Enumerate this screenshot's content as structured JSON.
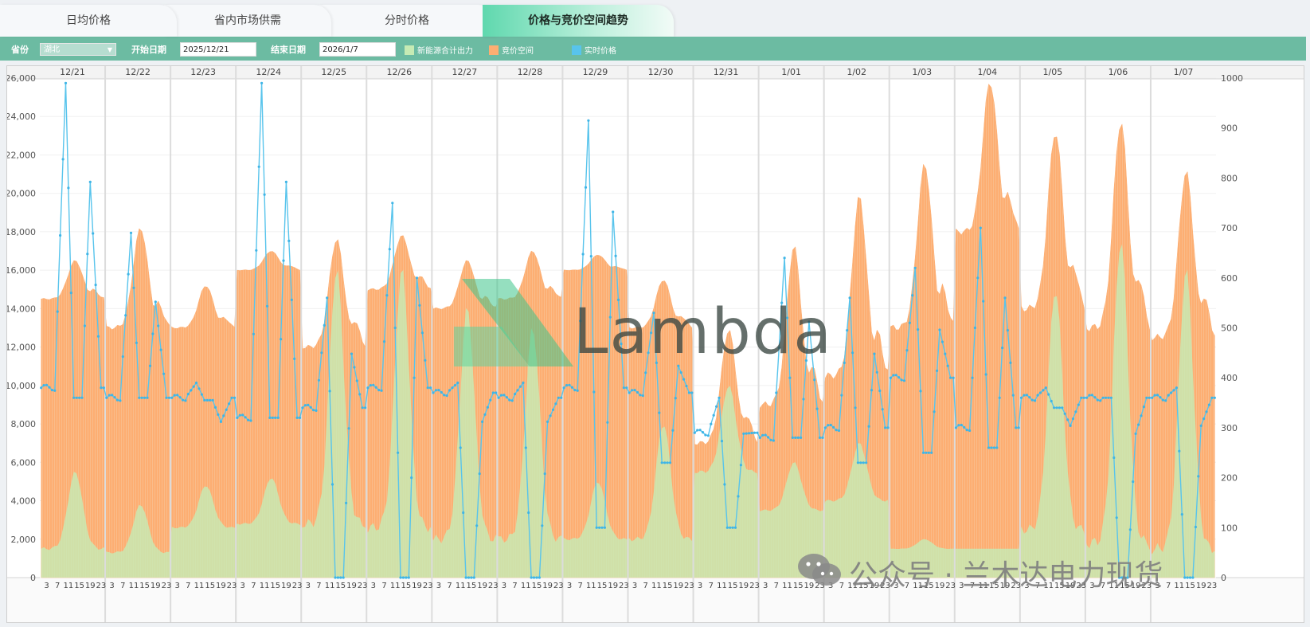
{
  "tabs": [
    {
      "label": "日均价格",
      "active": false
    },
    {
      "label": "省内市场供需",
      "active": false
    },
    {
      "label": "分时价格",
      "active": false
    },
    {
      "label": "价格与竞价空间趋势",
      "active": true
    }
  ],
  "toolbar": {
    "province_label": "省份",
    "province_value": "湖北",
    "start_label": "开始日期",
    "start_value": "2025/12/21",
    "end_label": "结束日期",
    "end_value": "2026/1/7"
  },
  "legend": [
    {
      "name": "新能源合计出力",
      "color": "#c6ebb4"
    },
    {
      "name": "竞价空间",
      "color": "#fdae72"
    },
    {
      "name": "实时价格",
      "color": "#58c4ec"
    }
  ],
  "watermark": {
    "text": "Lambda",
    "wechat": "公众号 · 兰木达电力现货"
  },
  "chart_data": {
    "type": "area",
    "days": [
      "12/21",
      "12/22",
      "12/23",
      "12/24",
      "12/25",
      "12/26",
      "12/27",
      "12/28",
      "12/29",
      "12/30",
      "12/31",
      "1/01",
      "1/02",
      "1/03",
      "1/04",
      "1/05",
      "1/06",
      "1/07"
    ],
    "hour_ticks": [
      "3",
      "7",
      "11",
      "15",
      "19",
      "23"
    ],
    "y_left": {
      "ticks": [
        0,
        2000,
        4000,
        6000,
        8000,
        10000,
        12000,
        14000,
        16000,
        18000,
        20000,
        22000,
        24000,
        26000
      ],
      "tick_labels": [
        "0",
        "2,000",
        "4,000",
        "6,000",
        "8,000",
        "10,000",
        "12,000",
        "14,000",
        "16,000",
        "18,000",
        "20,000",
        "22,000",
        "24,000",
        "26,000"
      ],
      "min": 0,
      "max": 26000
    },
    "y_right": {
      "ticks": [
        0,
        100,
        200,
        300,
        400,
        500,
        600,
        700,
        800,
        900,
        1000
      ],
      "min": 0,
      "max": 1000
    },
    "series_daily_approx": [
      {
        "name": "新能源合计出力",
        "axis": "left",
        "night": [
          1500,
          1300,
          2600,
          2800,
          2800,
          2600,
          2000,
          2000,
          2000,
          2000,
          5500,
          3500,
          4000,
          1500,
          1500,
          2500,
          1800,
          1500
        ],
        "peak": [
          5500,
          3800,
          4800,
          5200,
          16000,
          16000,
          14000,
          13000,
          5000,
          8000,
          10000,
          6000,
          7000,
          2000,
          1500,
          15000,
          17500,
          16000
        ]
      },
      {
        "name": "竞价空间",
        "axis": "left",
        "night": [
          14500,
          13000,
          13000,
          16000,
          12000,
          15000,
          14000,
          14500,
          16000,
          13000,
          7000,
          9000,
          10500,
          13000,
          18000,
          14000,
          13000,
          12500
        ],
        "peak": [
          16500,
          18200,
          15200,
          17000,
          17600,
          17800,
          16500,
          17000,
          16800,
          15500,
          12900,
          17200,
          19800,
          21500,
          25800,
          23200,
          23700,
          21100
        ]
      },
      {
        "name": "实时价格",
        "axis": "right",
        "night": [
          380,
          360,
          360,
          320,
          340,
          380,
          370,
          360,
          380,
          370,
          290,
          280,
          300,
          400,
          300,
          360,
          360,
          360
        ],
        "peak": [
          990,
          690,
          390,
          990,
          560,
          750,
          390,
          390,
          915,
          530,
          360,
          640,
          560,
          620,
          700,
          380,
          360,
          380
        ],
        "low": [
          360,
          360,
          355,
          320,
          0,
          0,
          0,
          0,
          100,
          230,
          100,
          280,
          230,
          250,
          260,
          340,
          0,
          0
        ]
      }
    ]
  }
}
